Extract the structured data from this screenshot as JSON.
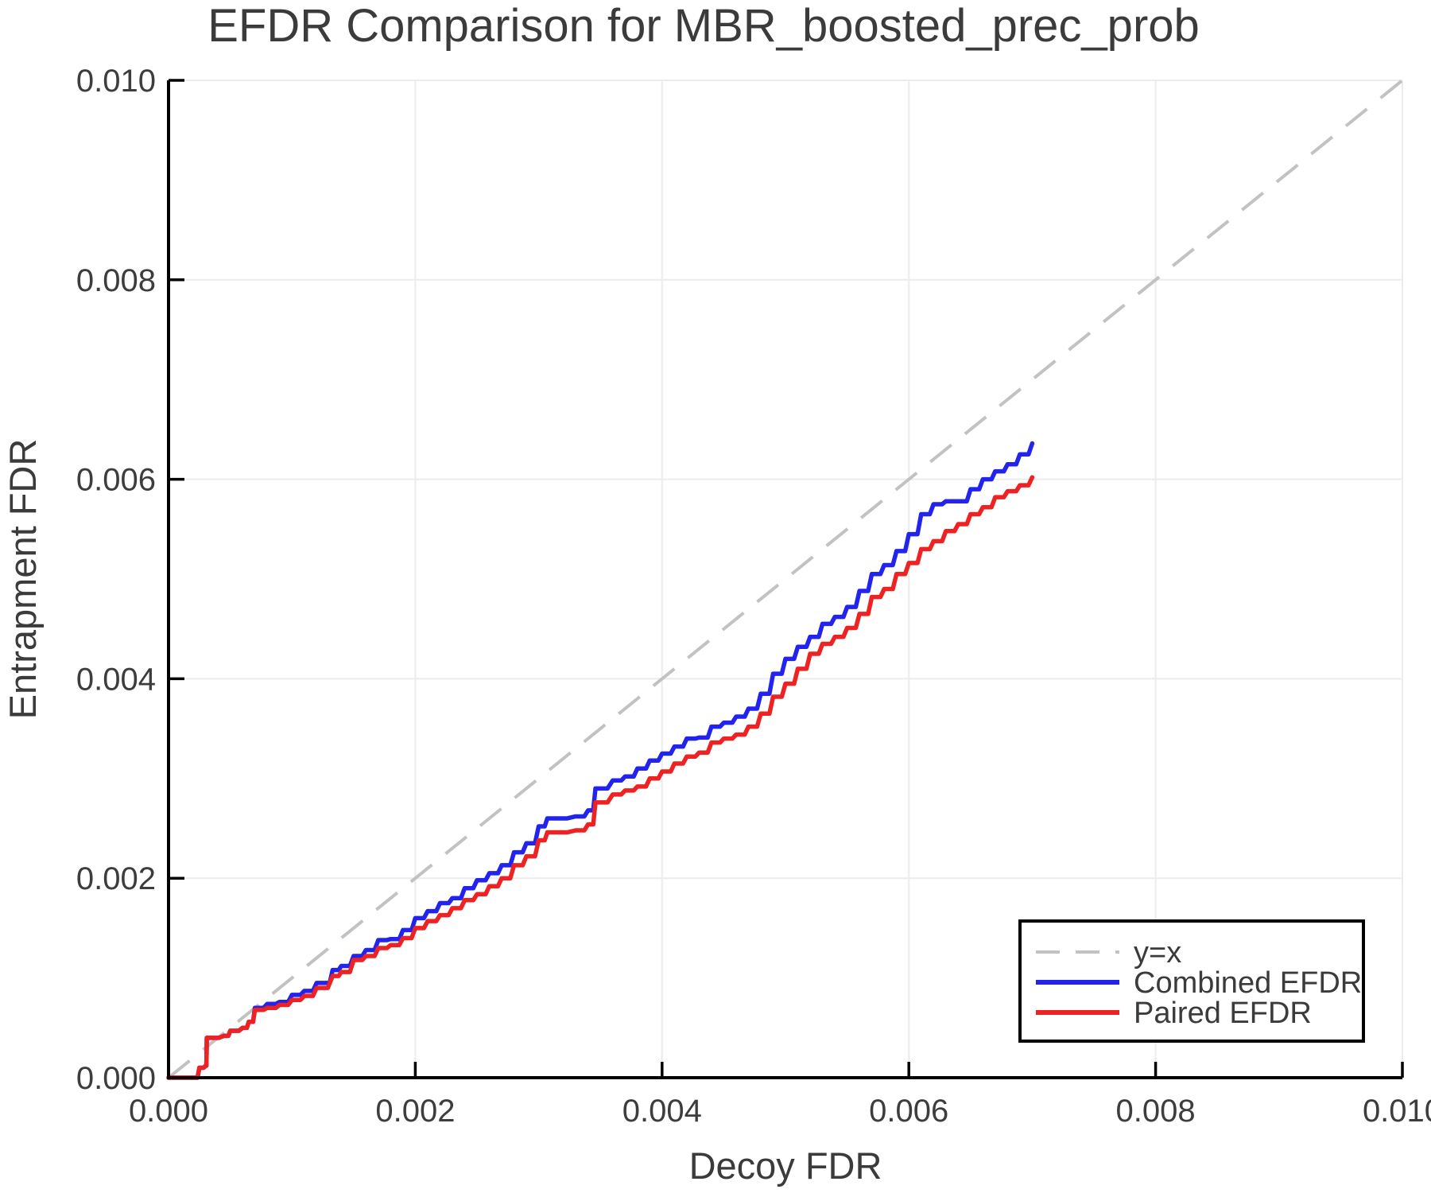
{
  "title": "EFDR Comparison for MBR_boosted_prec_prob",
  "chart_data": {
    "type": "line",
    "title": "EFDR Comparison for MBR_boosted_prec_prob",
    "xlabel": "Decoy FDR",
    "ylabel": "Entrapment FDR",
    "xlim": [
      0.0,
      0.01
    ],
    "ylim": [
      0.0,
      0.01
    ],
    "xticks": [
      0.0,
      0.002,
      0.004,
      0.006,
      0.008,
      0.01
    ],
    "yticks": [
      0.0,
      0.002,
      0.004,
      0.006,
      0.008,
      0.01
    ],
    "tick_format_decimals": 3,
    "grid": true,
    "grid_color": "#ececec",
    "spine_color": "#000000",
    "text_color": "#3b3b3b",
    "reference_line": {
      "label": "y=x",
      "style": "dashed",
      "color": "#c2c2c2",
      "from": [
        0.0,
        0.0
      ],
      "to": [
        0.01,
        0.01
      ]
    },
    "legend": {
      "position": "lower right",
      "border_color": "#000000",
      "background": "#ffffff",
      "items": [
        "y=x",
        "Combined EFDR",
        "Paired EFDR"
      ]
    },
    "series": [
      {
        "name": "Combined EFDR",
        "color": "#2323ee",
        "points": [
          [
            0.0,
            0.0
          ],
          [
            0.0002,
            0.0
          ],
          [
            0.00025,
            0.0001
          ],
          [
            0.0003,
            0.00012
          ],
          [
            0.00031,
            0.0004
          ],
          [
            0.00045,
            0.00042
          ],
          [
            0.0005,
            0.00047
          ],
          [
            0.0006,
            0.0005
          ],
          [
            0.00065,
            0.00056
          ],
          [
            0.0007,
            0.0007
          ],
          [
            0.0008,
            0.00074
          ],
          [
            0.0009,
            0.00076
          ],
          [
            0.001,
            0.00083
          ],
          [
            0.0011,
            0.00087
          ],
          [
            0.0012,
            0.00095
          ],
          [
            0.00125,
            0.00095
          ],
          [
            0.00133,
            0.00108
          ],
          [
            0.0014,
            0.00112
          ],
          [
            0.0015,
            0.00122
          ],
          [
            0.0016,
            0.00128
          ],
          [
            0.0017,
            0.00138
          ],
          [
            0.0018,
            0.00139
          ],
          [
            0.0019,
            0.00148
          ],
          [
            0.002,
            0.0016
          ],
          [
            0.0021,
            0.00167
          ],
          [
            0.0022,
            0.00175
          ],
          [
            0.0023,
            0.0018
          ],
          [
            0.0024,
            0.0019
          ],
          [
            0.0025,
            0.00198
          ],
          [
            0.0026,
            0.00205
          ],
          [
            0.0027,
            0.00213
          ],
          [
            0.0028,
            0.00226
          ],
          [
            0.0029,
            0.00235
          ],
          [
            0.003,
            0.00252
          ],
          [
            0.00307,
            0.0026
          ],
          [
            0.0033,
            0.00262
          ],
          [
            0.0034,
            0.00268
          ],
          [
            0.00346,
            0.0029
          ],
          [
            0.0036,
            0.00298
          ],
          [
            0.0037,
            0.00302
          ],
          [
            0.0038,
            0.0031
          ],
          [
            0.0039,
            0.00318
          ],
          [
            0.004,
            0.00325
          ],
          [
            0.0041,
            0.00332
          ],
          [
            0.0042,
            0.0034
          ],
          [
            0.0043,
            0.00341
          ],
          [
            0.0044,
            0.00352
          ],
          [
            0.0045,
            0.00356
          ],
          [
            0.0046,
            0.00362
          ],
          [
            0.0047,
            0.0037
          ],
          [
            0.0048,
            0.00385
          ],
          [
            0.0049,
            0.00405
          ],
          [
            0.005,
            0.0042
          ],
          [
            0.0051,
            0.00432
          ],
          [
            0.0052,
            0.00442
          ],
          [
            0.0053,
            0.00455
          ],
          [
            0.0054,
            0.00462
          ],
          [
            0.0055,
            0.00472
          ],
          [
            0.0056,
            0.00488
          ],
          [
            0.0057,
            0.00505
          ],
          [
            0.0058,
            0.00514
          ],
          [
            0.0059,
            0.00528
          ],
          [
            0.006,
            0.00545
          ],
          [
            0.0061,
            0.00565
          ],
          [
            0.0062,
            0.00575
          ],
          [
            0.0063,
            0.00578
          ],
          [
            0.0064,
            0.00578
          ],
          [
            0.0065,
            0.0059
          ],
          [
            0.0066,
            0.006
          ],
          [
            0.0067,
            0.00608
          ],
          [
            0.0068,
            0.00615
          ],
          [
            0.0069,
            0.00625
          ],
          [
            0.007,
            0.00636
          ]
        ]
      },
      {
        "name": "Paired EFDR",
        "color": "#ee2222",
        "points": [
          [
            0.0,
            0.0
          ],
          [
            0.0002,
            0.0
          ],
          [
            0.00025,
            0.0001
          ],
          [
            0.0003,
            0.00012
          ],
          [
            0.00031,
            0.0004
          ],
          [
            0.00045,
            0.00042
          ],
          [
            0.0005,
            0.00047
          ],
          [
            0.0006,
            0.0005
          ],
          [
            0.00065,
            0.00056
          ],
          [
            0.0007,
            0.00068
          ],
          [
            0.0008,
            0.0007
          ],
          [
            0.0009,
            0.00073
          ],
          [
            0.001,
            0.00078
          ],
          [
            0.0011,
            0.00082
          ],
          [
            0.0012,
            0.0009
          ],
          [
            0.00133,
            0.00102
          ],
          [
            0.0014,
            0.00106
          ],
          [
            0.0015,
            0.00118
          ],
          [
            0.0016,
            0.00122
          ],
          [
            0.0017,
            0.0013
          ],
          [
            0.0018,
            0.00133
          ],
          [
            0.0019,
            0.0014
          ],
          [
            0.002,
            0.0015
          ],
          [
            0.0021,
            0.00157
          ],
          [
            0.0022,
            0.00163
          ],
          [
            0.0023,
            0.0017
          ],
          [
            0.0024,
            0.00178
          ],
          [
            0.0025,
            0.00184
          ],
          [
            0.0026,
            0.00192
          ],
          [
            0.0027,
            0.002
          ],
          [
            0.0028,
            0.00213
          ],
          [
            0.0029,
            0.00222
          ],
          [
            0.003,
            0.00238
          ],
          [
            0.00307,
            0.00246
          ],
          [
            0.0033,
            0.00248
          ],
          [
            0.0034,
            0.00254
          ],
          [
            0.00346,
            0.00276
          ],
          [
            0.0036,
            0.00284
          ],
          [
            0.0037,
            0.00288
          ],
          [
            0.0038,
            0.00292
          ],
          [
            0.0039,
            0.003
          ],
          [
            0.004,
            0.00307
          ],
          [
            0.0041,
            0.00315
          ],
          [
            0.0042,
            0.00322
          ],
          [
            0.0043,
            0.00326
          ],
          [
            0.0044,
            0.00336
          ],
          [
            0.0045,
            0.0034
          ],
          [
            0.0046,
            0.00344
          ],
          [
            0.0047,
            0.00352
          ],
          [
            0.0048,
            0.00365
          ],
          [
            0.0049,
            0.00382
          ],
          [
            0.005,
            0.00395
          ],
          [
            0.0051,
            0.0041
          ],
          [
            0.0052,
            0.00425
          ],
          [
            0.0053,
            0.00435
          ],
          [
            0.0054,
            0.00442
          ],
          [
            0.0055,
            0.00451
          ],
          [
            0.0056,
            0.00465
          ],
          [
            0.0057,
            0.00482
          ],
          [
            0.0058,
            0.0049
          ],
          [
            0.0059,
            0.00505
          ],
          [
            0.006,
            0.00516
          ],
          [
            0.0061,
            0.0053
          ],
          [
            0.0062,
            0.00538
          ],
          [
            0.0063,
            0.00548
          ],
          [
            0.0064,
            0.00555
          ],
          [
            0.0065,
            0.00565
          ],
          [
            0.0066,
            0.00572
          ],
          [
            0.0067,
            0.00582
          ],
          [
            0.0068,
            0.00588
          ],
          [
            0.0069,
            0.00594
          ],
          [
            0.007,
            0.00602
          ]
        ]
      }
    ]
  }
}
